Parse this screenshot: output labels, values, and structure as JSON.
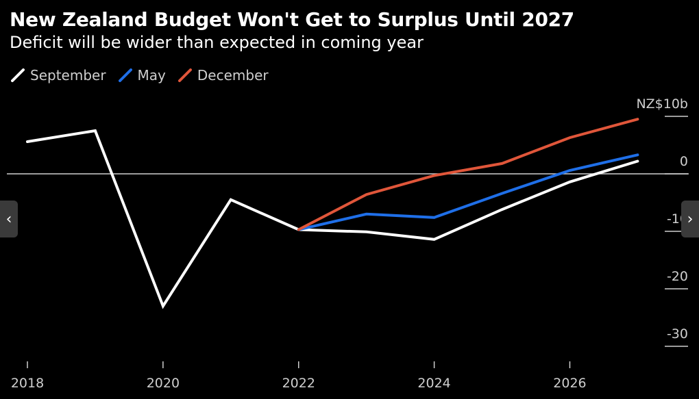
{
  "chart_data": {
    "type": "line",
    "title": "New Zealand Budget Won't Get to Surplus Until 2027",
    "subtitle": "Deficit will be wider than expected in coming year",
    "y_unit_label": "NZ$10b",
    "x": [
      2018,
      2019,
      2020,
      2021,
      2022,
      2023,
      2024,
      2025,
      2026,
      2027
    ],
    "x_ticks": [
      2018,
      2020,
      2022,
      2024,
      2026
    ],
    "y_ticks": [
      10,
      0,
      -10,
      -20,
      -30
    ],
    "y_tick_labels": [
      "NZ$10b",
      "0",
      "-10",
      "-20",
      "-30"
    ],
    "ylim": [
      -30,
      10
    ],
    "xlim": [
      2018,
      2027.4
    ],
    "series": [
      {
        "name": "September",
        "color": "#ffffff",
        "values": [
          5.6,
          7.5,
          -23.0,
          -4.5,
          -9.7,
          -10.1,
          -11.4,
          -6.2,
          -1.4,
          2.2
        ]
      },
      {
        "name": "May",
        "color": "#1f6fe8",
        "values": [
          null,
          null,
          null,
          null,
          -9.7,
          -7.0,
          -7.6,
          -3.4,
          0.6,
          3.3
        ]
      },
      {
        "name": "December",
        "color": "#e0563a",
        "values": [
          null,
          null,
          null,
          null,
          -9.7,
          -3.6,
          -0.3,
          1.8,
          6.3,
          9.5
        ]
      }
    ]
  },
  "nav": {
    "prev_glyph": "‹",
    "next_glyph": "›"
  }
}
